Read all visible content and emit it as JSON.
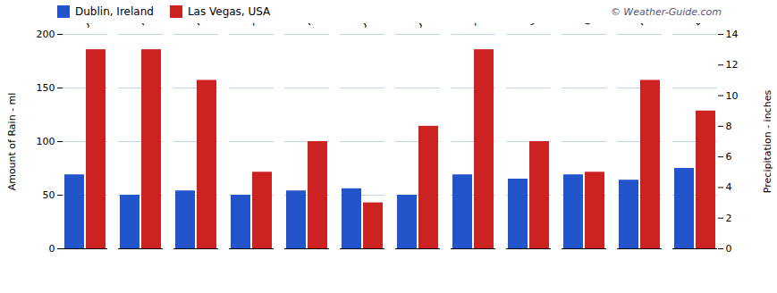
{
  "chart_data": {
    "type": "bar",
    "categories": [
      "Jan",
      "Feb",
      "Mar",
      "Apr",
      "May",
      "Jun",
      "Jul",
      "Aug",
      "Sep",
      "Oct",
      "Nov",
      "Dec"
    ],
    "series": [
      {
        "name": "Dublin, Ireland",
        "color": "#2255cc",
        "values": [
          69,
          50,
          54,
          50,
          54,
          56,
          50,
          69,
          65,
          69,
          64,
          75
        ]
      },
      {
        "name": "Las Vegas, USA",
        "color": "#cc2222",
        "values": [
          13,
          13,
          11,
          5,
          7,
          3,
          8,
          13,
          7,
          5,
          11,
          9
        ],
        "axis": "y2"
      }
    ],
    "ylabel": "Amount of Rain - ml",
    "y2label": "Precipitation - inches",
    "ylim": [
      0,
      200
    ],
    "yticks": [
      0,
      50,
      100,
      150,
      200
    ],
    "y2lim": [
      0,
      14
    ],
    "y2ticks": [
      0,
      2,
      4,
      6,
      8,
      10,
      12,
      14
    ],
    "grid": true,
    "legend": "upper left",
    "annotations": [
      "©  Weather-Guide.com"
    ]
  }
}
